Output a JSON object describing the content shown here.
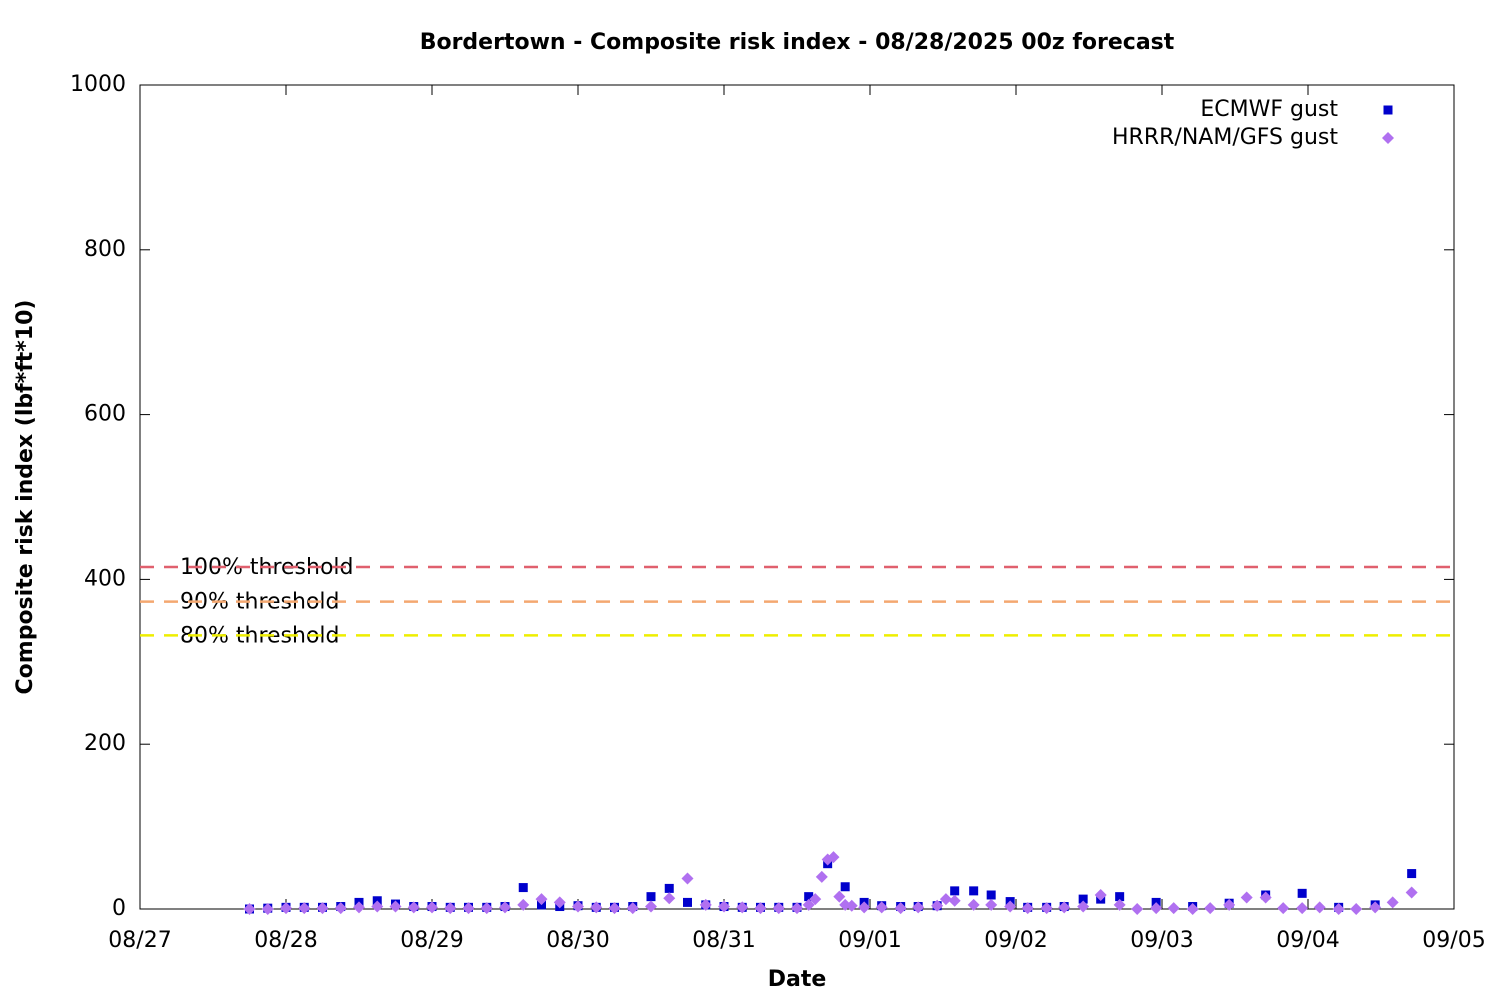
{
  "chart_data": {
    "type": "scatter",
    "title": "Bordertown - Composite risk index - 08/28/2025 00z forecast",
    "xlabel": "Date",
    "ylabel": "Composite risk index (lbf*ft*10)",
    "xlim": [
      0,
      9
    ],
    "xticks": [
      {
        "value": 0,
        "label": "08/27"
      },
      {
        "value": 1,
        "label": "08/28"
      },
      {
        "value": 2,
        "label": "08/29"
      },
      {
        "value": 3,
        "label": "08/30"
      },
      {
        "value": 4,
        "label": "08/31"
      },
      {
        "value": 5,
        "label": "09/01"
      },
      {
        "value": 6,
        "label": "09/02"
      },
      {
        "value": 7,
        "label": "09/03"
      },
      {
        "value": 8,
        "label": "09/04"
      },
      {
        "value": 9,
        "label": "09/05"
      }
    ],
    "ylim": [
      0,
      1000
    ],
    "yticks": [
      0,
      200,
      400,
      600,
      800,
      1000
    ],
    "grid": false,
    "legend": "top-right",
    "series": [
      {
        "name": "ECMWF gust",
        "color": "#0000cc",
        "marker": "square",
        "x": [
          0.75,
          0.875,
          1,
          1.125,
          1.25,
          1.375,
          1.5,
          1.625,
          1.75,
          1.875,
          2,
          2.125,
          2.25,
          2.375,
          2.5,
          2.625,
          2.75,
          2.875,
          3,
          3.125,
          3.25,
          3.375,
          3.5,
          3.625,
          3.75,
          3.875,
          4,
          4.125,
          4.25,
          4.375,
          4.5,
          4.58,
          4.71,
          4.83,
          4.96,
          5.08,
          5.21,
          5.33,
          5.46,
          5.58,
          5.71,
          5.83,
          5.96,
          6.08,
          6.21,
          6.33,
          6.46,
          6.58,
          6.71,
          6.96,
          7.21,
          7.46,
          7.71,
          7.96,
          8.21,
          8.46,
          8.71
        ],
        "values": [
          0,
          1,
          2,
          2,
          2,
          3,
          8,
          10,
          6,
          3,
          3,
          2,
          2,
          2,
          3,
          26,
          5,
          3,
          4,
          2,
          2,
          3,
          15,
          25,
          8,
          5,
          3,
          2,
          2,
          2,
          2,
          15,
          55,
          27,
          8,
          4,
          3,
          3,
          4,
          22,
          22,
          17,
          9,
          2,
          2,
          3,
          12,
          12,
          15,
          8,
          3,
          7,
          17,
          19,
          2,
          5,
          43
        ]
      },
      {
        "name": "HRRR/NAM/GFS gust",
        "color": "#b070f0",
        "marker": "diamond",
        "x": [
          0.75,
          0.875,
          1,
          1.125,
          1.25,
          1.375,
          1.5,
          1.625,
          1.75,
          1.875,
          2,
          2.125,
          2.25,
          2.375,
          2.5,
          2.625,
          2.75,
          2.875,
          3,
          3.125,
          3.25,
          3.375,
          3.5,
          3.625,
          3.75,
          3.875,
          4,
          4.125,
          4.25,
          4.375,
          4.5,
          4.58,
          4.625,
          4.67,
          4.71,
          4.75,
          4.79,
          4.83,
          4.875,
          4.96,
          5.08,
          5.21,
          5.33,
          5.46,
          5.52,
          5.58,
          5.71,
          5.83,
          5.96,
          6.08,
          6.21,
          6.33,
          6.46,
          6.58,
          6.71,
          6.83,
          6.96,
          7.08,
          7.21,
          7.33,
          7.46,
          7.58,
          7.71,
          7.83,
          7.96,
          8.08,
          8.21,
          8.33,
          8.46,
          8.58,
          8.71
        ],
        "values": [
          0,
          0,
          1,
          1,
          1,
          1,
          2,
          3,
          3,
          2,
          2,
          1,
          1,
          1,
          2,
          5,
          12,
          8,
          3,
          2,
          1,
          1,
          3,
          13,
          37,
          5,
          3,
          2,
          1,
          1,
          1,
          5,
          12,
          39,
          60,
          63,
          15,
          5,
          4,
          2,
          2,
          1,
          2,
          4,
          12,
          10,
          5,
          5,
          3,
          1,
          1,
          2,
          3,
          17,
          5,
          0,
          1,
          1,
          0,
          1,
          5,
          14,
          14,
          1,
          1,
          2,
          0,
          0,
          2,
          8,
          20
        ]
      }
    ],
    "thresholds": [
      {
        "name": "100% threshold",
        "value": 415,
        "color": "#e0606e"
      },
      {
        "name": "90% threshold",
        "value": 373,
        "color": "#f4a870"
      },
      {
        "name": "80% threshold",
        "value": 332,
        "color": "#eeee00"
      }
    ]
  }
}
